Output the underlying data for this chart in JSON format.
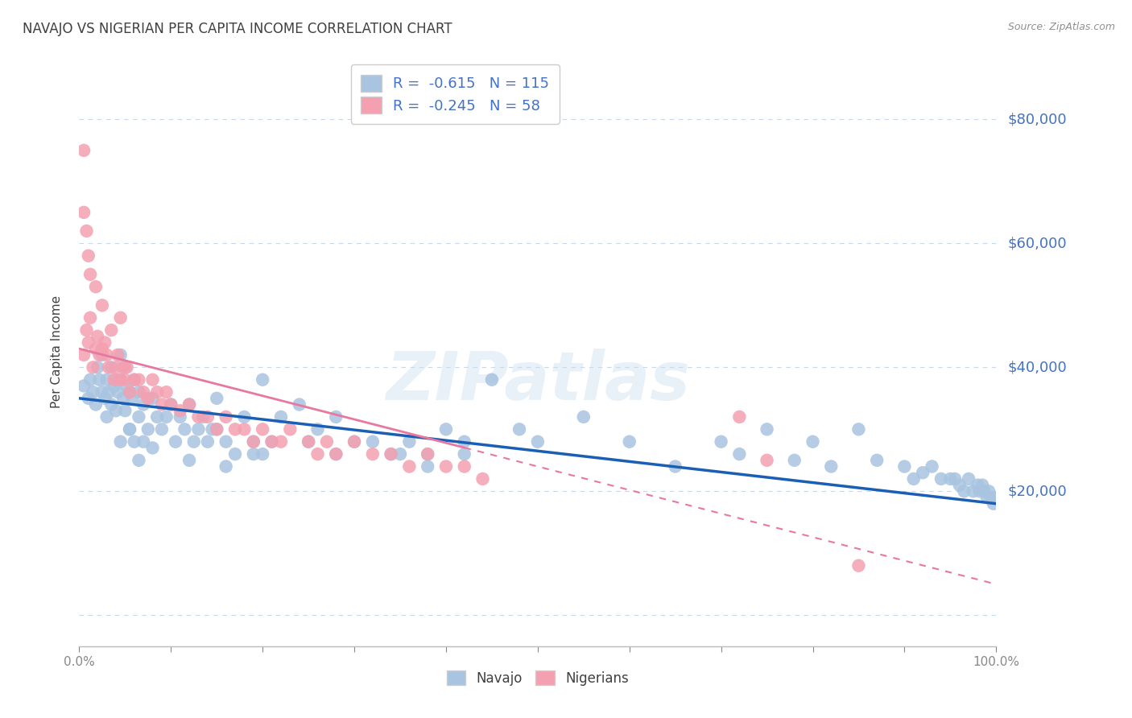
{
  "title": "NAVAJO VS NIGERIAN PER CAPITA INCOME CORRELATION CHART",
  "source": "Source: ZipAtlas.com",
  "ylabel": "Per Capita Income",
  "yticks": [
    0,
    20000,
    40000,
    60000,
    80000
  ],
  "ytick_labels": [
    "",
    "$20,000",
    "$40,000",
    "$60,000",
    "$80,000"
  ],
  "ylim": [
    -5000,
    90000
  ],
  "xlim": [
    0.0,
    1.0
  ],
  "navajo_R": -0.615,
  "navajo_N": 115,
  "nigerian_R": -0.245,
  "nigerian_N": 58,
  "navajo_color": "#a8c4e0",
  "nigerian_color": "#f4a0b0",
  "navajo_line_color": "#1a5fb4",
  "nigerian_line_color": "#e878a0",
  "background_color": "#ffffff",
  "grid_color": "#c8d8e8",
  "title_color": "#404040",
  "source_color": "#909090",
  "ylabel_color": "#404040",
  "ytick_color": "#4472c4",
  "legend_text_color": "#4472c4",
  "watermark": "ZIPatlas",
  "navajo_x": [
    0.005,
    0.01,
    0.012,
    0.015,
    0.018,
    0.02,
    0.022,
    0.025,
    0.025,
    0.028,
    0.03,
    0.03,
    0.032,
    0.035,
    0.035,
    0.038,
    0.04,
    0.04,
    0.042,
    0.045,
    0.045,
    0.048,
    0.05,
    0.05,
    0.052,
    0.055,
    0.055,
    0.058,
    0.06,
    0.06,
    0.065,
    0.065,
    0.07,
    0.07,
    0.075,
    0.08,
    0.085,
    0.09,
    0.095,
    0.1,
    0.105,
    0.11,
    0.115,
    0.12,
    0.125,
    0.13,
    0.135,
    0.14,
    0.145,
    0.15,
    0.16,
    0.17,
    0.18,
    0.19,
    0.2,
    0.22,
    0.24,
    0.26,
    0.28,
    0.3,
    0.32,
    0.34,
    0.36,
    0.38,
    0.4,
    0.42,
    0.45,
    0.48,
    0.5,
    0.55,
    0.6,
    0.65,
    0.7,
    0.72,
    0.75,
    0.78,
    0.8,
    0.82,
    0.85,
    0.87,
    0.9,
    0.91,
    0.92,
    0.93,
    0.94,
    0.95,
    0.955,
    0.96,
    0.965,
    0.97,
    0.975,
    0.98,
    0.982,
    0.985,
    0.987,
    0.99,
    0.992,
    0.995,
    0.997,
    1.0,
    0.15,
    0.25,
    0.35,
    0.28,
    0.2,
    0.12,
    0.08,
    0.055,
    0.16,
    0.19,
    0.21,
    0.045,
    0.065,
    0.38,
    0.42
  ],
  "navajo_y": [
    37000,
    35000,
    38000,
    36000,
    34000,
    40000,
    38000,
    42000,
    36000,
    35000,
    38000,
    32000,
    36000,
    40000,
    34000,
    37000,
    38000,
    33000,
    36000,
    42000,
    38000,
    35000,
    40000,
    33000,
    37000,
    36000,
    30000,
    35000,
    38000,
    28000,
    32000,
    36000,
    34000,
    28000,
    30000,
    35000,
    32000,
    30000,
    32000,
    34000,
    28000,
    32000,
    30000,
    34000,
    28000,
    30000,
    32000,
    28000,
    30000,
    35000,
    28000,
    26000,
    32000,
    28000,
    38000,
    32000,
    34000,
    30000,
    26000,
    28000,
    28000,
    26000,
    28000,
    26000,
    30000,
    28000,
    38000,
    30000,
    28000,
    32000,
    28000,
    24000,
    28000,
    26000,
    30000,
    25000,
    28000,
    24000,
    30000,
    25000,
    24000,
    22000,
    23000,
    24000,
    22000,
    22000,
    22000,
    21000,
    20000,
    22000,
    20000,
    21000,
    20000,
    21000,
    20000,
    19000,
    20000,
    19000,
    18000,
    19000,
    30000,
    28000,
    26000,
    32000,
    26000,
    25000,
    27000,
    30000,
    24000,
    26000,
    28000,
    28000,
    25000,
    24000,
    26000
  ],
  "nigerian_x": [
    0.005,
    0.008,
    0.01,
    0.012,
    0.015,
    0.018,
    0.02,
    0.022,
    0.025,
    0.028,
    0.03,
    0.032,
    0.035,
    0.038,
    0.04,
    0.042,
    0.045,
    0.048,
    0.05,
    0.052,
    0.055,
    0.06,
    0.065,
    0.07,
    0.075,
    0.08,
    0.085,
    0.09,
    0.095,
    0.1,
    0.11,
    0.12,
    0.13,
    0.14,
    0.15,
    0.16,
    0.17,
    0.18,
    0.19,
    0.2,
    0.21,
    0.22,
    0.23,
    0.25,
    0.26,
    0.27,
    0.28,
    0.3,
    0.32,
    0.34,
    0.36,
    0.38,
    0.4,
    0.42,
    0.44,
    0.72,
    0.75,
    0.85
  ],
  "nigerian_y": [
    42000,
    46000,
    44000,
    48000,
    40000,
    43000,
    45000,
    42000,
    43000,
    44000,
    42000,
    40000,
    46000,
    38000,
    40000,
    42000,
    38000,
    40000,
    38000,
    40000,
    36000,
    38000,
    38000,
    36000,
    35000,
    38000,
    36000,
    34000,
    36000,
    34000,
    33000,
    34000,
    32000,
    32000,
    30000,
    32000,
    30000,
    30000,
    28000,
    30000,
    28000,
    28000,
    30000,
    28000,
    26000,
    28000,
    26000,
    28000,
    26000,
    26000,
    24000,
    26000,
    24000,
    24000,
    22000,
    32000,
    25000,
    8000
  ],
  "nigerian_outliers_x": [
    0.005,
    0.005,
    0.008,
    0.01,
    0.012,
    0.018,
    0.025,
    0.045
  ],
  "nigerian_outliers_y": [
    75000,
    65000,
    62000,
    58000,
    55000,
    53000,
    50000,
    48000
  ]
}
